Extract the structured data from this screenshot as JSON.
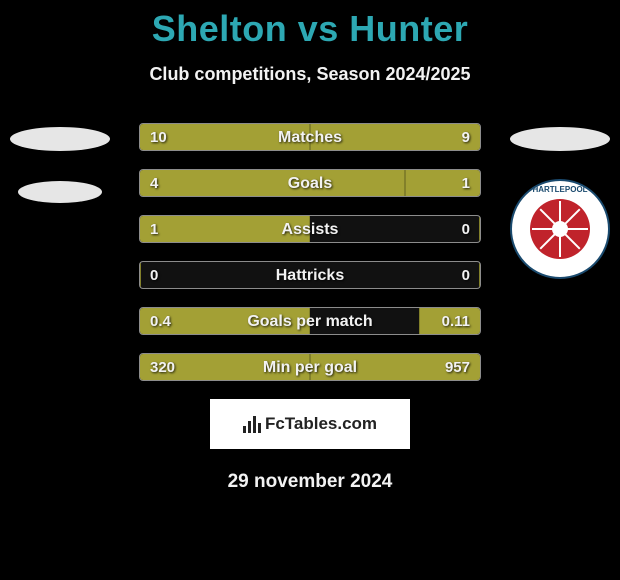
{
  "header": {
    "title": "Shelton vs Hunter",
    "subtitle": "Club competitions, Season 2024/2025"
  },
  "chart": {
    "type": "comparison-bars",
    "bar_color": "#a3a035",
    "track_color": "#111111",
    "border_color": "#8c8c8c",
    "text_color": "#f2f2f2",
    "title_color": "#2da8b3",
    "background_color": "#000000",
    "rows": [
      {
        "label": "Matches",
        "left_value": "10",
        "right_value": "9",
        "left_pct": 50,
        "right_pct": 50
      },
      {
        "label": "Goals",
        "left_value": "4",
        "right_value": "1",
        "left_pct": 78,
        "right_pct": 22
      },
      {
        "label": "Assists",
        "left_value": "1",
        "right_value": "0",
        "left_pct": 50,
        "right_pct": 0
      },
      {
        "label": "Hattricks",
        "left_value": "0",
        "right_value": "0",
        "left_pct": 0,
        "right_pct": 0
      },
      {
        "label": "Goals per match",
        "left_value": "0.4",
        "right_value": "0.11",
        "left_pct": 50,
        "right_pct": 18
      },
      {
        "label": "Min per goal",
        "left_value": "320",
        "right_value": "957",
        "left_pct": 50,
        "right_pct": 50
      }
    ]
  },
  "right_badge": {
    "top_text": "HARTLEPOOL",
    "ring_color": "#1a4a6e",
    "wheel_color": "#c0232b"
  },
  "footer": {
    "brand": "FcTables.com",
    "date": "29 november 2024"
  }
}
